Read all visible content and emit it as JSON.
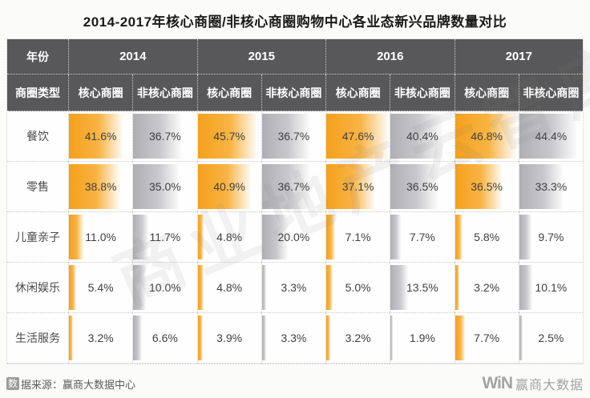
{
  "title": "2014-2017年核心商圈/非核心商圈购物中心各业态新兴品牌数量对比",
  "table": {
    "year_header_label": "年份",
    "type_header_label": "商圈类型",
    "years": [
      "2014",
      "2015",
      "2016",
      "2017"
    ],
    "core_label": "核心商圈",
    "noncore_label": "非核心商圈",
    "rows": [
      {
        "category": "餐饮",
        "values": [
          "41.6%",
          "36.7%",
          "45.7%",
          "36.7%",
          "47.6%",
          "40.4%",
          "46.8%",
          "44.4%"
        ]
      },
      {
        "category": "零售",
        "values": [
          "38.8%",
          "35.0%",
          "40.9%",
          "36.7%",
          "37.1%",
          "36.5%",
          "36.5%",
          "33.3%"
        ]
      },
      {
        "category": "儿童亲子",
        "values": [
          "11.0%",
          "11.7%",
          "4.8%",
          "20.0%",
          "7.1%",
          "7.7%",
          "5.8%",
          "9.7%"
        ]
      },
      {
        "category": "休闲娱乐",
        "values": [
          "5.4%",
          "10.0%",
          "4.8%",
          "3.3%",
          "5.0%",
          "13.5%",
          "3.2%",
          "10.1%"
        ]
      },
      {
        "category": "生活服务",
        "values": [
          "3.2%",
          "6.6%",
          "3.9%",
          "3.3%",
          "3.2%",
          "1.9%",
          "7.7%",
          "2.5%"
        ]
      }
    ]
  },
  "chart_data": {
    "type": "table",
    "title": "2014-2017年核心商圈/非核心商圈购物中心各业态新兴品牌数量对比",
    "row_categories": [
      "餐饮",
      "零售",
      "儿童亲子",
      "休闲娱乐",
      "生活服务"
    ],
    "column_groups": [
      "2014",
      "2015",
      "2016",
      "2017"
    ],
    "column_subtypes": [
      "核心商圈",
      "非核心商圈"
    ],
    "unit": "%",
    "series": [
      {
        "name": "餐饮",
        "values": [
          41.6,
          36.7,
          45.7,
          36.7,
          47.6,
          40.4,
          46.8,
          44.4
        ]
      },
      {
        "name": "零售",
        "values": [
          38.8,
          35.0,
          40.9,
          36.7,
          37.1,
          36.5,
          36.5,
          33.3
        ]
      },
      {
        "name": "儿童亲子",
        "values": [
          11.0,
          11.7,
          4.8,
          20.0,
          7.1,
          7.7,
          5.8,
          9.7
        ]
      },
      {
        "name": "休闲娱乐",
        "values": [
          5.4,
          10.0,
          4.8,
          3.3,
          5.0,
          13.5,
          3.2,
          10.1
        ]
      },
      {
        "name": "生活服务",
        "values": [
          3.2,
          6.6,
          3.9,
          3.3,
          3.2,
          1.9,
          7.7,
          2.5
        ]
      }
    ],
    "bar_colors": {
      "core": "#F5A01B",
      "noncore": "#AEAEB4"
    },
    "header_background": "#58585A"
  },
  "watermark": {
    "text": "商业地产云智库"
  },
  "footer": {
    "source_prefix_char": "数",
    "source_rest": "据来源：赢商大数据中心",
    "logo_mark": "WiN",
    "logo_name": "赢商大数据"
  }
}
